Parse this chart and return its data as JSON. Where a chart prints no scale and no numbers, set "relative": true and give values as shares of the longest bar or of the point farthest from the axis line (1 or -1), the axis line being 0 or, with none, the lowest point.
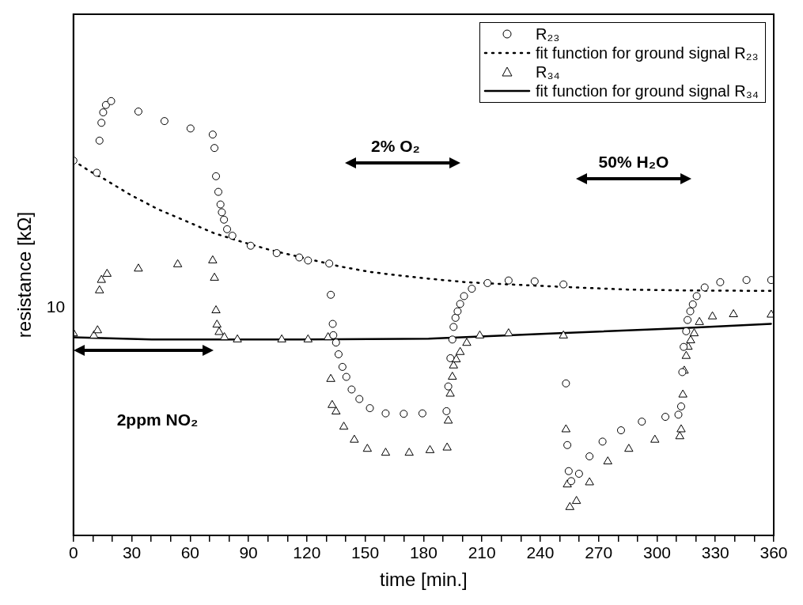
{
  "chart_data": {
    "type": "scatter",
    "xlabel": "time [min.]",
    "ylabel": "resistance [kΩ]",
    "relative": true,
    "xlim": [
      0,
      360
    ],
    "xticks": [
      0,
      {
        "value": 10,
        "label": null
      },
      {
        "value": 20,
        "label": null
      },
      30,
      {
        "value": 40,
        "label": null
      },
      {
        "value": 50,
        "label": null
      },
      60,
      {
        "value": 70,
        "label": null
      },
      {
        "value": 80,
        "label": null
      },
      90,
      {
        "value": 100,
        "label": null
      },
      {
        "value": 110,
        "label": null
      },
      120,
      {
        "value": 130,
        "label": null
      },
      {
        "value": 140,
        "label": null
      },
      150,
      {
        "value": 160,
        "label": null
      },
      {
        "value": 170,
        "label": null
      },
      180,
      {
        "value": 190,
        "label": null
      },
      {
        "value": 200,
        "label": null
      },
      210,
      {
        "value": 220,
        "label": null
      },
      {
        "value": 230,
        "label": null
      },
      240,
      {
        "value": 250,
        "label": null
      },
      {
        "value": 260,
        "label": null
      },
      270,
      {
        "value": 280,
        "label": null
      },
      {
        "value": 290,
        "label": null
      },
      300,
      {
        "value": 310,
        "label": null
      },
      {
        "value": 320,
        "label": null
      },
      330,
      {
        "value": 340,
        "label": null
      },
      {
        "value": 350,
        "label": null
      },
      360
    ],
    "grid": false,
    "legend": "top right",
    "annotations": [
      "2ppm NO₂",
      "2% O₂",
      "50% H₂O",
      "10"
    ],
    "series": [
      {
        "name": "R₂₃",
        "type": "scatter",
        "marker": "circle",
        "color": "#000000",
        "x": [
          0,
          12,
          13.4,
          14.4,
          15.3,
          16.7,
          19.4,
          33.4,
          46.8,
          60.2,
          71.6,
          72.5,
          73.3,
          74.5,
          75.6,
          76.3,
          77.4,
          79,
          81.7,
          91.1,
          104.5,
          116.1,
          120.6,
          131.5,
          132.3,
          133.3,
          133.6,
          135,
          136.3,
          138.3,
          140.3,
          143,
          147,
          152.4,
          160.5,
          169.8,
          179.4,
          191.8,
          192.7,
          193.8,
          194.8,
          195.4,
          196.4,
          197.5,
          198.8,
          200.8,
          204.8,
          212.9,
          223.7,
          237.1,
          251.9,
          253.2,
          253.9,
          254.6,
          255.9,
          259.9,
          265.3,
          272,
          281.5,
          292.2,
          304.3,
          311,
          312.4,
          313,
          313.7,
          315,
          315.7,
          317.1,
          318.4,
          320.4,
          324.5,
          332.5,
          346,
          358.7
        ],
        "values": [
          0.863,
          0.835,
          0.909,
          0.95,
          0.974,
          0.991,
          1.0,
          0.976,
          0.954,
          0.937,
          0.923,
          0.892,
          0.827,
          0.791,
          0.762,
          0.744,
          0.727,
          0.705,
          0.69,
          0.667,
          0.65,
          0.64,
          0.633,
          0.626,
          0.554,
          0.487,
          0.461,
          0.444,
          0.417,
          0.388,
          0.365,
          0.336,
          0.314,
          0.293,
          0.281,
          0.28,
          0.281,
          0.286,
          0.343,
          0.408,
          0.451,
          0.48,
          0.501,
          0.516,
          0.533,
          0.551,
          0.568,
          0.581,
          0.587,
          0.585,
          0.578,
          0.35,
          0.208,
          0.148,
          0.125,
          0.142,
          0.182,
          0.216,
          0.242,
          0.262,
          0.273,
          0.278,
          0.297,
          0.376,
          0.434,
          0.47,
          0.496,
          0.516,
          0.532,
          0.551,
          0.571,
          0.583,
          0.588,
          0.588
        ]
      },
      {
        "name": "fit function for ground signal R₂₃",
        "type": "line",
        "marker": "none",
        "line_style": "dotted",
        "color": "#000000",
        "x": [
          0,
          7.9,
          15.3,
          29.4,
          43.5,
          57.7,
          72.2,
          86.6,
          101.3,
          137.3,
          152.1,
          166.3,
          180.4,
          201.9,
          223.4,
          257.8,
          285.4,
          315,
          358.7
        ],
        "values": [
          0.863,
          0.84,
          0.822,
          0.784,
          0.751,
          0.724,
          0.696,
          0.676,
          0.657,
          0.619,
          0.607,
          0.599,
          0.592,
          0.583,
          0.578,
          0.571,
          0.566,
          0.564,
          0.563
        ]
      },
      {
        "name": "R₃₄",
        "type": "scatter",
        "marker": "triangle",
        "color": "#000000",
        "x": [
          0,
          10.5,
          12.4,
          13.4,
          14.4,
          17.3,
          33.4,
          53.6,
          71.6,
          72.5,
          73.3,
          73.8,
          74.9,
          77.6,
          84.3,
          107.1,
          120.6,
          130.9,
          132.3,
          133,
          135,
          139,
          144.4,
          151.1,
          160.5,
          172.6,
          183.3,
          192.1,
          192.7,
          193.7,
          194.8,
          195.4,
          196.8,
          198.8,
          202.2,
          208.9,
          223.7,
          251.9,
          253.2,
          253.9,
          255.2,
          258.6,
          265.3,
          274.7,
          285.5,
          298.9,
          311.7,
          312.4,
          313.3,
          314,
          315,
          316,
          317.3,
          319.1,
          321.8,
          328.5,
          339.3,
          358.7
        ],
        "values": [
          0.465,
          0.46,
          0.472,
          0.564,
          0.588,
          0.602,
          0.614,
          0.624,
          0.633,
          0.593,
          0.518,
          0.485,
          0.468,
          0.456,
          0.451,
          0.451,
          0.451,
          0.456,
          0.36,
          0.3,
          0.285,
          0.25,
          0.22,
          0.199,
          0.19,
          0.19,
          0.196,
          0.202,
          0.264,
          0.326,
          0.365,
          0.391,
          0.405,
          0.422,
          0.443,
          0.46,
          0.465,
          0.46,
          0.244,
          0.117,
          0.065,
          0.079,
          0.122,
          0.17,
          0.199,
          0.22,
          0.228,
          0.244,
          0.324,
          0.379,
          0.413,
          0.434,
          0.449,
          0.465,
          0.491,
          0.504,
          0.509,
          0.508
        ]
      },
      {
        "name": "fit function for ground signal R₃₄",
        "type": "line",
        "marker": "none",
        "line_style": "solid",
        "color": "#000000",
        "x": [
          0,
          40.3,
          116,
          182.6,
          245.2,
          312.4,
          358.6
        ],
        "values": [
          0.456,
          0.451,
          0.451,
          0.453,
          0.465,
          0.477,
          0.487
        ]
      }
    ]
  }
}
